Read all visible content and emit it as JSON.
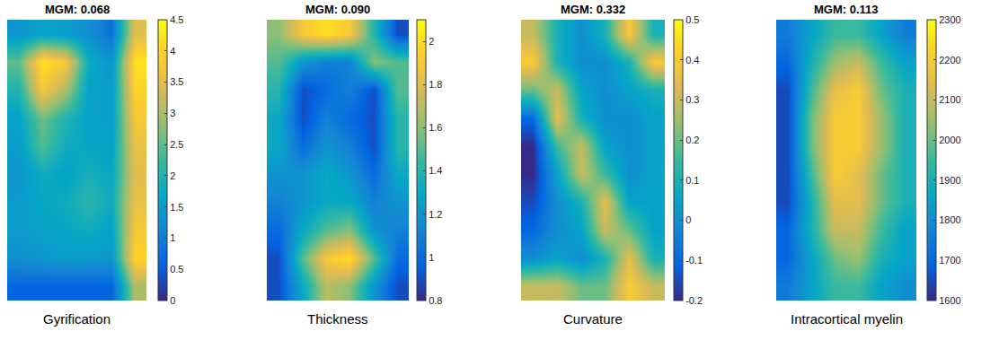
{
  "chart_data": [
    {
      "type": "heatmap",
      "title": "MGM: 0.068",
      "x_label": "Gyrification",
      "tick_labels": false,
      "cells": [
        [
          1.4,
          1.6,
          1.5,
          1.3,
          0.8,
          3.5
        ],
        [
          2.5,
          4.2,
          3.8,
          1.8,
          1.4,
          4.2
        ],
        [
          2.0,
          3.8,
          3.0,
          1.6,
          1.5,
          4.0
        ],
        [
          1.6,
          2.6,
          2.0,
          1.6,
          1.5,
          3.8
        ],
        [
          1.5,
          2.4,
          1.8,
          1.7,
          1.6,
          3.6
        ],
        [
          1.4,
          1.8,
          1.6,
          1.9,
          1.7,
          3.5
        ],
        [
          1.5,
          1.7,
          1.8,
          2.1,
          1.8,
          3.6
        ],
        [
          1.5,
          1.6,
          1.7,
          1.8,
          1.6,
          3.8
        ],
        [
          1.3,
          1.4,
          1.5,
          1.5,
          1.4,
          4.0
        ],
        [
          0.6,
          0.6,
          0.6,
          0.6,
          0.6,
          3.0
        ]
      ],
      "colorbar": {
        "range": [
          0,
          4.5
        ],
        "ticks": [
          0,
          0.5,
          1,
          1.5,
          2,
          2.5,
          3,
          3.5,
          4,
          4.5
        ]
      }
    },
    {
      "type": "heatmap",
      "title": "MGM: 0.090",
      "x_label": "Thickness",
      "tick_labels": false,
      "cells": [
        [
          1.6,
          1.9,
          2.0,
          1.9,
          1.4,
          0.9
        ],
        [
          1.5,
          1.2,
          1.1,
          1.1,
          1.6,
          1.5
        ],
        [
          1.4,
          0.9,
          1.0,
          1.1,
          0.9,
          1.5
        ],
        [
          1.3,
          0.9,
          1.1,
          1.0,
          0.9,
          1.4
        ],
        [
          1.3,
          1.0,
          1.2,
          1.1,
          0.9,
          1.4
        ],
        [
          1.2,
          1.2,
          1.3,
          1.2,
          1.0,
          1.3
        ],
        [
          1.1,
          1.2,
          1.3,
          1.3,
          1.1,
          1.2
        ],
        [
          1.0,
          1.3,
          1.5,
          1.6,
          1.2,
          1.1
        ],
        [
          0.9,
          1.5,
          1.9,
          2.0,
          1.5,
          1.0
        ],
        [
          0.9,
          1.3,
          1.7,
          1.6,
          1.2,
          0.9
        ]
      ],
      "colorbar": {
        "range": [
          0.8,
          2.1
        ],
        "ticks": [
          0.8,
          1,
          1.2,
          1.4,
          1.6,
          1.8,
          2
        ]
      }
    },
    {
      "type": "heatmap",
      "title": "MGM: 0.332",
      "x_label": "Curvature",
      "tick_labels": false,
      "cells": [
        [
          0.3,
          0.1,
          0.0,
          0.1,
          0.4,
          0.1
        ],
        [
          0.4,
          0.1,
          0.0,
          0.0,
          0.1,
          0.4
        ],
        [
          0.2,
          0.3,
          0.05,
          0.0,
          0.05,
          0.1
        ],
        [
          -0.1,
          0.35,
          0.1,
          0.0,
          0.0,
          0.05
        ],
        [
          -0.2,
          0.15,
          0.3,
          0.05,
          0.0,
          0.05
        ],
        [
          -0.2,
          0.05,
          0.3,
          0.15,
          0.0,
          0.05
        ],
        [
          -0.15,
          0.0,
          0.1,
          0.35,
          0.05,
          0.05
        ],
        [
          -0.1,
          0.0,
          0.05,
          0.3,
          0.2,
          0.05
        ],
        [
          0.0,
          0.05,
          0.0,
          0.1,
          0.35,
          0.1
        ],
        [
          0.3,
          0.3,
          0.2,
          0.2,
          0.4,
          0.3
        ]
      ],
      "colorbar": {
        "range": [
          -0.2,
          0.5
        ],
        "ticks": [
          -0.2,
          -0.1,
          0,
          0.1,
          0.2,
          0.3,
          0.4,
          0.5
        ]
      }
    },
    {
      "type": "heatmap",
      "title": "MGM: 0.113",
      "x_label": "Intracortical myelin",
      "tick_labels": false,
      "cells": [
        [
          1750,
          1850,
          1950,
          1950,
          1850,
          1750
        ],
        [
          1700,
          1900,
          2050,
          2100,
          1950,
          1850
        ],
        [
          1650,
          1950,
          2150,
          2200,
          2000,
          1900
        ],
        [
          1650,
          2000,
          2200,
          2200,
          2050,
          1900
        ],
        [
          1650,
          2000,
          2200,
          2200,
          2050,
          1900
        ],
        [
          1650,
          1950,
          2200,
          2150,
          2000,
          1900
        ],
        [
          1650,
          1900,
          2150,
          2150,
          2000,
          1900
        ],
        [
          1700,
          1900,
          2100,
          2100,
          1950,
          1850
        ],
        [
          1700,
          1850,
          2000,
          2050,
          1900,
          1850
        ],
        [
          1750,
          1850,
          1950,
          1950,
          1850,
          1800
        ]
      ],
      "colorbar": {
        "range": [
          1600,
          2300
        ],
        "ticks": [
          1600,
          1700,
          1800,
          1900,
          2000,
          2100,
          2200,
          2300
        ]
      }
    }
  ]
}
